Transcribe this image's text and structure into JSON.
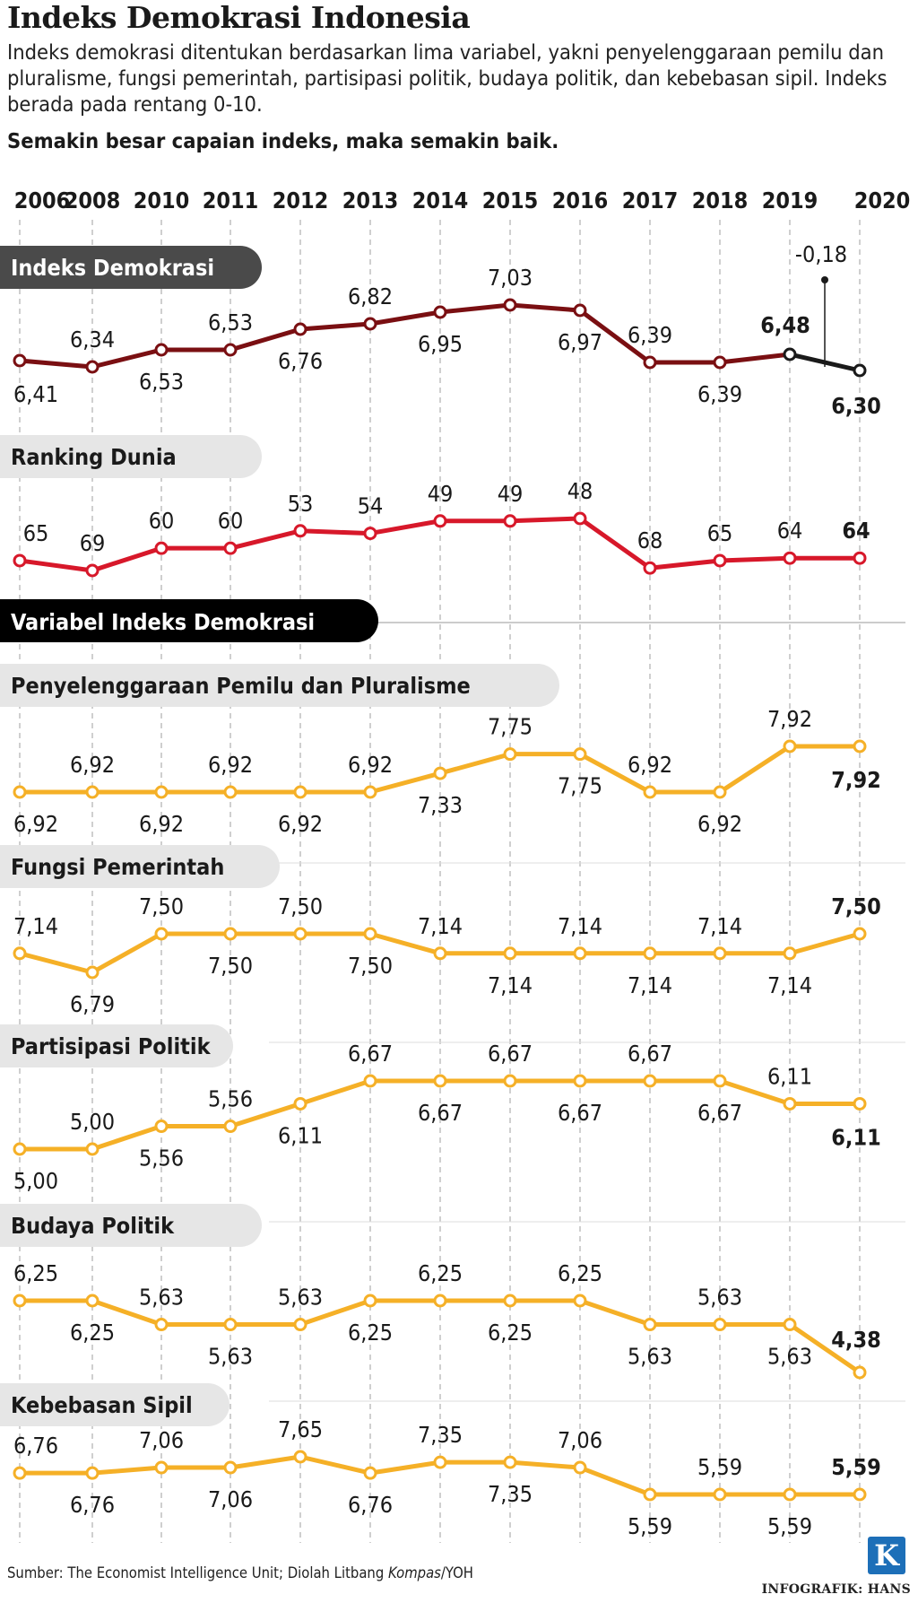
{
  "title": "Indeks Demokrasi Indonesia",
  "description": "Indeks demokrasi ditentukan berdasarkan lima variabel, yakni penyelenggaraan pemilu dan pluralisme, fungsi pemerintah, partisipasi politik, budaya politik, dan kebebasan sipil. Indeks berada pada rentang 0-10.",
  "emphasis": "Semakin besar capaian indeks, maka semakin baik.",
  "source": {
    "prefix": "Sumber: The Economist Intelligence Unit; Diolah Litbang ",
    "publication": "Kompas",
    "suffix": "/YOH"
  },
  "credit": "INFOGRAFIK: HANS",
  "logo_letter": "K",
  "colors": {
    "dark_red": "#7a0f12",
    "red": "#d7182a",
    "orange": "#f5b027",
    "black": "#1a1a1a",
    "label_gray": "#e6e6e6",
    "label_dark": "#4a4a4a",
    "logo_blue": "#1d6fb8"
  },
  "variables_header": "Variabel Indeks Demokrasi",
  "chart_data": {
    "type": "line",
    "years": [
      "2006",
      "2008",
      "2010",
      "2011",
      "2012",
      "2013",
      "2014",
      "2015",
      "2016",
      "2017",
      "2018",
      "2019",
      "2020"
    ],
    "series": [
      {
        "name": "Indeks Demokrasi",
        "values": [
          6.41,
          6.34,
          6.53,
          6.53,
          6.76,
          6.82,
          6.95,
          7.03,
          6.97,
          6.39,
          6.39,
          6.48,
          6.3
        ],
        "labels": [
          "6,41",
          "6,34",
          "6,53",
          "6,53",
          "6,76",
          "6,82",
          "6,95",
          "7,03",
          "6,97",
          "6,39",
          "6,39",
          "6,48",
          "6,30"
        ],
        "change_label": "-0,18"
      },
      {
        "name": "Ranking Dunia",
        "values": [
          65,
          69,
          60,
          60,
          53,
          54,
          49,
          49,
          48,
          68,
          65,
          64,
          64
        ],
        "labels": [
          "65",
          "69",
          "60",
          "60",
          "53",
          "54",
          "49",
          "49",
          "48",
          "68",
          "65",
          "64",
          "64"
        ],
        "inverted": true
      },
      {
        "name": "Penyelenggaraan Pemilu dan Pluralisme",
        "values": [
          6.92,
          6.92,
          6.92,
          6.92,
          6.92,
          6.92,
          7.33,
          7.75,
          7.75,
          6.92,
          6.92,
          7.92,
          7.92
        ],
        "labels": [
          "6,92",
          "6,92",
          "6,92",
          "6,92",
          "6,92",
          "6,92",
          "7,33",
          "7,75",
          "7,75",
          "6,92",
          "6,92",
          "7,92",
          "7,92"
        ]
      },
      {
        "name": "Fungsi Pemerintah",
        "values": [
          7.14,
          6.79,
          7.5,
          7.5,
          7.5,
          7.5,
          7.14,
          7.14,
          7.14,
          7.14,
          7.14,
          7.14,
          7.5
        ],
        "labels": [
          "7,14",
          "6,79",
          "7,50",
          "7,50",
          "7,50",
          "7,50",
          "7,14",
          "7,14",
          "7,14",
          "7,14",
          "7,14",
          "7,14",
          "7,50"
        ]
      },
      {
        "name": "Partisipasi Politik",
        "values": [
          5.0,
          5.0,
          5.56,
          5.56,
          6.11,
          6.67,
          6.67,
          6.67,
          6.67,
          6.67,
          6.67,
          6.11,
          6.11
        ],
        "labels": [
          "5,00",
          "5,00",
          "5,56",
          "5,56",
          "6,11",
          "6,67",
          "6,67",
          "6,67",
          "6,67",
          "6,67",
          "6,67",
          "6,11",
          "6,11"
        ]
      },
      {
        "name": "Budaya Politik",
        "values": [
          6.25,
          6.25,
          5.63,
          5.63,
          5.63,
          6.25,
          6.25,
          6.25,
          6.25,
          5.63,
          5.63,
          5.63,
          4.38
        ],
        "labels": [
          "6,25",
          "6,25",
          "5,63",
          "5,63",
          "5,63",
          "6,25",
          "6,25",
          "6,25",
          "6,25",
          "5,63",
          "5,63",
          "5,63",
          "4,38"
        ]
      },
      {
        "name": "Kebebasan Sipil",
        "values": [
          6.76,
          6.76,
          7.06,
          7.06,
          7.65,
          6.76,
          7.35,
          7.35,
          7.06,
          5.59,
          5.59,
          5.59,
          5.59
        ],
        "labels": [
          "6,76",
          "6,76",
          "7,06",
          "7,06",
          "7,65",
          "6,76",
          "7,35",
          "7,35",
          "7,06",
          "5,59",
          "5,59",
          "5,59",
          "5,59"
        ]
      }
    ]
  }
}
